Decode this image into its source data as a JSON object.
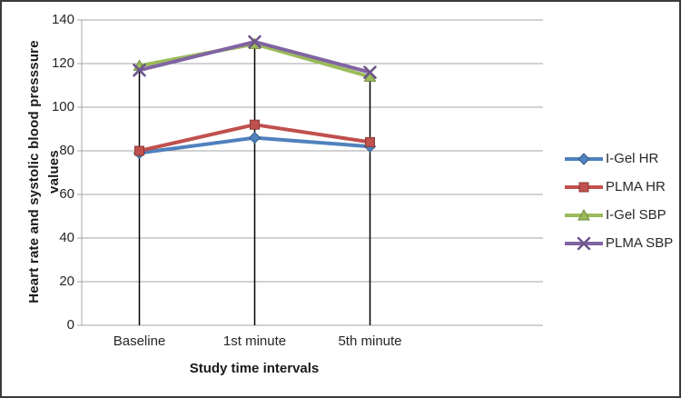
{
  "figure": {
    "background": "#ffffff",
    "border_color": "#3b3b3b"
  },
  "chart_data": {
    "type": "line",
    "title": "",
    "xlabel": "Study time intervals",
    "ylabel": "Heart rate and systolic blood presssure values",
    "categories": [
      "Baseline",
      "1st minute",
      "5th minute"
    ],
    "series": [
      {
        "name": "I-Gel HR",
        "marker": "diamond",
        "color": "#4F81BD",
        "values": [
          79,
          86,
          82
        ]
      },
      {
        "name": "PLMA HR",
        "marker": "square",
        "color": "#C0504D",
        "values": [
          80,
          92,
          84
        ]
      },
      {
        "name": "I-Gel SBP",
        "marker": "triangle",
        "color": "#9BBB59",
        "values": [
          119,
          129,
          114
        ]
      },
      {
        "name": "PLMA SBP",
        "marker": "x",
        "color": "#8064A2",
        "values": [
          117,
          130,
          116
        ]
      }
    ],
    "ylim": [
      0,
      140
    ],
    "yticks": [
      0,
      20,
      40,
      60,
      80,
      100,
      120,
      140
    ],
    "grid": true,
    "gridline_color": "#A6A6A6",
    "axis_line_color": "#A6A6A6",
    "drop_lines": true,
    "drop_line_color": "#000000",
    "legend_position": "right",
    "text_color": "#262626"
  }
}
